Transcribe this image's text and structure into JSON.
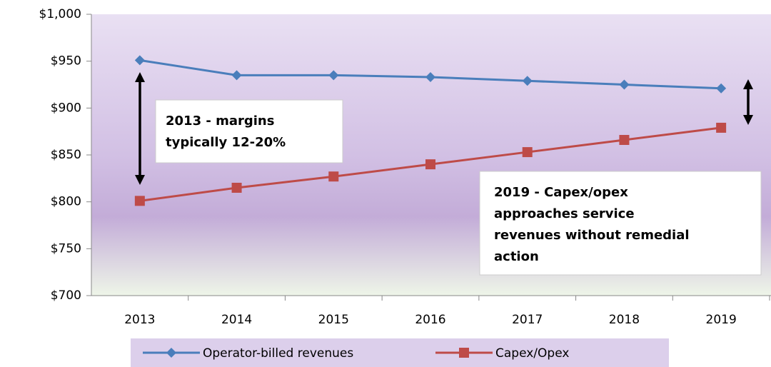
{
  "chart_data": {
    "type": "line",
    "categories": [
      "2013",
      "2014",
      "2015",
      "2016",
      "2017",
      "2018",
      "2019"
    ],
    "series": [
      {
        "name": "Operator-billed revenues",
        "color": "#4a7ebb",
        "marker": "diamond",
        "values": [
          951,
          935,
          935,
          933,
          929,
          925,
          921
        ]
      },
      {
        "name": "Capex/Opex",
        "color": "#be4b48",
        "marker": "square",
        "values": [
          801,
          815,
          827,
          840,
          853,
          866,
          879
        ]
      }
    ],
    "ylim": [
      700,
      1000
    ],
    "yticks": [
      {
        "value": 700,
        "label": "$700"
      },
      {
        "value": 750,
        "label": "$750"
      },
      {
        "value": 800,
        "label": "$800"
      },
      {
        "value": 850,
        "label": "$850"
      },
      {
        "value": 900,
        "label": "$900"
      },
      {
        "value": 950,
        "label": "$950"
      },
      {
        "value": 1000,
        "label": "$1,000"
      }
    ],
    "annotations": [
      {
        "lines": [
          "2013 - margins",
          "typically 12-20%"
        ]
      },
      {
        "lines": [
          "2019  - Capex/opex",
          "approaches service",
          "revenues without remedial",
          "action"
        ]
      }
    ],
    "legend": "bottom"
  }
}
